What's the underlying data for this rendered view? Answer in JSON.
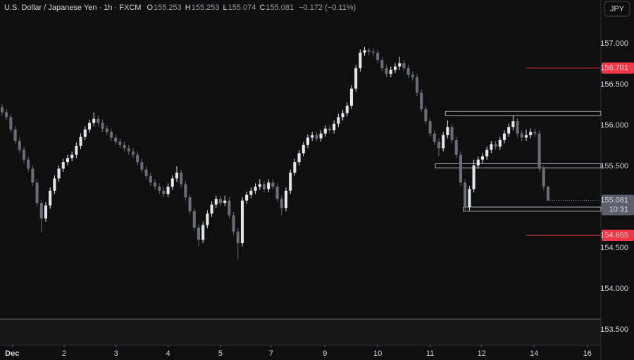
{
  "chart_data": {
    "type": "candlestick",
    "title": "U.S. Dollar / Japanese Yen · 1h · FXCM",
    "ohlc_letters": [
      "O",
      "H",
      "L",
      "C"
    ],
    "change": "−0.172 (−0.11%)",
    "currency": "JPY",
    "countdown": "10:31",
    "up_color": "#e3e5ea",
    "down_color": "#6a6d76",
    "level_color": "#f23645",
    "xlim": [
      -0.48,
      137.1
    ],
    "ylim": [
      153.31,
      157.534
    ],
    "yticks": [
      {
        "value": 157,
        "label": "157.000"
      },
      {
        "value": 156.5,
        "label": "156.500"
      },
      {
        "value": 156,
        "label": "156.000"
      },
      {
        "value": 155.5,
        "label": "155.500"
      },
      {
        "value": 155,
        "label": "155.000"
      },
      {
        "value": 154.5,
        "label": "154.500"
      },
      {
        "value": 154,
        "label": "154.000"
      },
      {
        "value": 153.5,
        "label": "153.500"
      }
    ],
    "xticks": [
      {
        "value": 2.3,
        "label": "Dec"
      },
      {
        "value": 14.2,
        "label": "2"
      },
      {
        "value": 26.1,
        "label": "3"
      },
      {
        "value": 38,
        "label": "4"
      },
      {
        "value": 50,
        "label": "5"
      },
      {
        "value": 61.6,
        "label": "7"
      },
      {
        "value": 73.9,
        "label": "9"
      },
      {
        "value": 86,
        "label": "10"
      },
      {
        "value": 98,
        "label": "11"
      },
      {
        "value": 109.8,
        "label": "12"
      },
      {
        "value": 121.8,
        "label": "14"
      },
      {
        "value": 134,
        "label": "16"
      }
    ],
    "levels": [
      {
        "value": 156.701,
        "from": 120
      },
      {
        "value": 154.655,
        "from": 120
      }
    ],
    "zones": [
      {
        "from": 101.5,
        "top": 156.17,
        "bottom": 156.12
      },
      {
        "from": 99.2,
        "top": 155.53,
        "bottom": 155.48
      },
      {
        "from": 105.6,
        "top": 155.0,
        "bottom": 154.95
      }
    ],
    "open": [
      156.22,
      156.16,
      156.1,
      155.95,
      155.81,
      155.7,
      155.58,
      155.47,
      155.3,
      155.05,
      154.86,
      155.02,
      155.2,
      155.35,
      155.47,
      155.55,
      155.6,
      155.64,
      155.75,
      155.86,
      155.95,
      156.03,
      156.08,
      156.03,
      155.96,
      155.92,
      155.85,
      155.8,
      155.76,
      155.72,
      155.68,
      155.64,
      155.55,
      155.46,
      155.38,
      155.3,
      155.25,
      155.2,
      155.16,
      155.25,
      155.35,
      155.42,
      155.28,
      155.12,
      154.95,
      154.75,
      154.6,
      154.78,
      154.92,
      155.03,
      155.1,
      155.05,
      155.08,
      154.9,
      154.7,
      154.56,
      155.08,
      155.15,
      155.2,
      155.25,
      155.28,
      155.22,
      155.3,
      155.25,
      155.1,
      154.99,
      155.2,
      155.42,
      155.55,
      155.66,
      155.76,
      155.85,
      155.88,
      155.84,
      155.9,
      155.96,
      155.94,
      156.02,
      156.1,
      156.15,
      156.24,
      156.45,
      156.7,
      156.89,
      156.92,
      156.9,
      156.89,
      156.8,
      156.7,
      156.63,
      156.68,
      156.72,
      156.76,
      156.7,
      156.62,
      156.59,
      156.4,
      156.2,
      156.05,
      155.9,
      155.8,
      155.72,
      155.88,
      155.98,
      155.82,
      155.64,
      155.3,
      155.0,
      155.22,
      155.51,
      155.58,
      155.62,
      155.7,
      155.77,
      155.74,
      155.82,
      155.9,
      155.98,
      156.05,
      155.9,
      155.85,
      155.88,
      155.92,
      155.9,
      155.47,
      155.253
    ],
    "high": [
      156.26,
      156.2,
      156.14,
      155.99,
      155.85,
      155.74,
      155.62,
      155.51,
      155.34,
      155.09,
      155.06,
      155.24,
      155.39,
      155.51,
      155.59,
      155.64,
      155.68,
      155.79,
      155.9,
      155.99,
      156.07,
      156.16,
      156.12,
      156.07,
      156.0,
      155.96,
      155.89,
      155.84,
      155.8,
      155.76,
      155.72,
      155.68,
      155.59,
      155.5,
      155.42,
      155.34,
      155.29,
      155.24,
      155.29,
      155.39,
      155.5,
      155.46,
      155.32,
      155.16,
      154.99,
      154.79,
      154.82,
      154.96,
      155.07,
      155.14,
      155.14,
      155.14,
      155.12,
      154.94,
      154.74,
      155.12,
      155.19,
      155.24,
      155.29,
      155.34,
      155.32,
      155.34,
      155.34,
      155.29,
      155.14,
      155.24,
      155.46,
      155.59,
      155.7,
      155.8,
      155.89,
      155.92,
      155.92,
      155.94,
      156.0,
      156.0,
      156.06,
      156.14,
      156.19,
      156.28,
      156.49,
      156.74,
      156.93,
      156.96,
      156.95,
      156.94,
      156.93,
      156.84,
      156.74,
      156.72,
      156.76,
      156.84,
      156.8,
      156.74,
      156.66,
      156.63,
      156.44,
      156.24,
      156.09,
      155.94,
      155.84,
      155.92,
      156.06,
      156.02,
      155.86,
      155.68,
      155.34,
      155.26,
      155.58,
      155.62,
      155.66,
      155.74,
      155.81,
      155.81,
      155.86,
      155.94,
      156.02,
      156.12,
      156.09,
      155.94,
      155.95,
      155.96,
      155.96,
      155.94,
      155.51,
      155.253
    ],
    "low": [
      156.12,
      156.06,
      155.91,
      155.77,
      155.66,
      155.54,
      155.43,
      155.26,
      155.01,
      154.69,
      154.82,
      154.98,
      155.16,
      155.31,
      155.43,
      155.51,
      155.56,
      155.6,
      155.71,
      155.82,
      155.91,
      155.99,
      155.99,
      155.92,
      155.88,
      155.81,
      155.76,
      155.72,
      155.68,
      155.64,
      155.6,
      155.51,
      155.42,
      155.34,
      155.26,
      155.21,
      155.16,
      155.12,
      155.12,
      155.21,
      155.31,
      155.24,
      155.08,
      154.91,
      154.71,
      154.52,
      154.56,
      154.74,
      154.88,
      154.99,
      155.01,
      155.01,
      154.86,
      154.66,
      154.36,
      154.52,
      155.04,
      155.11,
      155.16,
      155.21,
      155.18,
      155.18,
      155.21,
      155.06,
      154.9,
      154.95,
      155.16,
      155.38,
      155.51,
      155.62,
      155.72,
      155.81,
      155.8,
      155.8,
      155.86,
      155.9,
      155.9,
      155.98,
      156.06,
      156.11,
      156.2,
      156.41,
      156.66,
      156.85,
      156.86,
      156.84,
      156.76,
      156.66,
      156.59,
      156.59,
      156.64,
      156.68,
      156.66,
      156.58,
      156.55,
      156.36,
      156.16,
      156.01,
      155.86,
      155.76,
      155.62,
      155.68,
      155.84,
      155.78,
      155.6,
      155.26,
      154.96,
      154.96,
      155.18,
      155.47,
      155.54,
      155.58,
      155.66,
      155.7,
      155.7,
      155.78,
      155.86,
      155.94,
      155.86,
      155.81,
      155.81,
      155.84,
      155.86,
      155.43,
      155.21,
      155.074
    ],
    "close": [
      156.16,
      156.1,
      155.95,
      155.81,
      155.7,
      155.58,
      155.47,
      155.3,
      155.05,
      154.86,
      155.02,
      155.2,
      155.35,
      155.47,
      155.55,
      155.6,
      155.64,
      155.75,
      155.86,
      155.95,
      156.03,
      156.08,
      156.03,
      155.96,
      155.92,
      155.85,
      155.8,
      155.76,
      155.72,
      155.68,
      155.64,
      155.55,
      155.46,
      155.38,
      155.3,
      155.25,
      155.2,
      155.16,
      155.25,
      155.35,
      155.42,
      155.28,
      155.12,
      154.95,
      154.75,
      154.6,
      154.78,
      154.92,
      155.03,
      155.1,
      155.05,
      155.08,
      154.9,
      154.7,
      154.56,
      155.08,
      155.15,
      155.2,
      155.25,
      155.28,
      155.22,
      155.3,
      155.25,
      155.1,
      154.99,
      155.2,
      155.42,
      155.55,
      155.66,
      155.76,
      155.85,
      155.88,
      155.84,
      155.9,
      155.96,
      155.94,
      156.02,
      156.1,
      156.15,
      156.24,
      156.45,
      156.7,
      156.89,
      156.92,
      156.9,
      156.89,
      156.8,
      156.7,
      156.63,
      156.68,
      156.72,
      156.76,
      156.7,
      156.62,
      156.59,
      156.4,
      156.2,
      156.05,
      155.9,
      155.8,
      155.72,
      155.88,
      155.98,
      155.82,
      155.64,
      155.3,
      155.0,
      155.22,
      155.51,
      155.58,
      155.62,
      155.7,
      155.77,
      155.74,
      155.82,
      155.9,
      155.98,
      156.05,
      155.9,
      155.85,
      155.88,
      155.92,
      155.9,
      155.47,
      155.253,
      155.081
    ]
  }
}
